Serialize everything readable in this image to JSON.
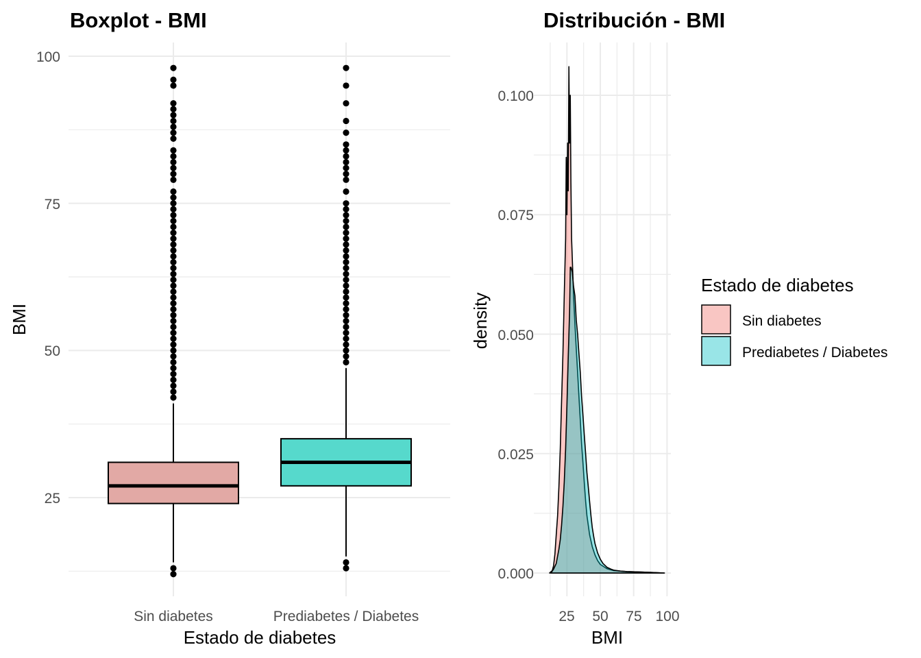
{
  "chart_data": [
    {
      "type": "boxplot",
      "title": "Boxplot - BMI",
      "xlabel": "Estado de diabetes",
      "ylabel": "BMI",
      "ylim": [
        10,
        103
      ],
      "yticks": [
        25,
        50,
        75,
        100
      ],
      "yticklabels": [
        "25",
        "50",
        "75",
        "100"
      ],
      "categories": [
        "Sin diabetes",
        "Prediabetes / Diabetes"
      ],
      "grid": true,
      "boxes": [
        {
          "name": "Sin diabetes",
          "color": "#E2A9A5",
          "whisker_low": 14,
          "q1": 24,
          "median": 27,
          "q3": 31,
          "whisker_high": 41,
          "outliers": [
            12,
            13,
            42,
            43,
            44,
            45,
            46,
            47,
            48,
            49,
            50,
            51,
            52,
            53,
            54,
            55,
            56,
            57,
            58,
            59,
            60,
            61,
            62,
            63,
            64,
            65,
            66,
            67,
            68,
            69,
            70,
            71,
            72,
            73,
            74,
            75,
            76,
            77,
            79,
            80,
            81,
            82,
            83,
            84,
            86,
            87,
            88,
            89,
            90,
            91,
            92,
            95,
            96,
            98
          ]
        },
        {
          "name": "Prediabetes / Diabetes",
          "color": "#56D9CC",
          "whisker_low": 15,
          "q1": 27,
          "median": 31,
          "q3": 35,
          "whisker_high": 47,
          "outliers": [
            13,
            14,
            48,
            49,
            50,
            51,
            52,
            53,
            54,
            55,
            56,
            57,
            58,
            59,
            60,
            61,
            62,
            63,
            64,
            65,
            66,
            67,
            68,
            69,
            70,
            71,
            72,
            73,
            74,
            75,
            77,
            79,
            80,
            81,
            82,
            83,
            84,
            85,
            87,
            89,
            92,
            95,
            98
          ]
        }
      ]
    },
    {
      "type": "area",
      "title": "Distribución - BMI",
      "xlabel": "BMI",
      "ylabel": "density",
      "xlim": [
        7,
        103
      ],
      "ylim": [
        -0.002,
        0.111
      ],
      "xticks": [
        25,
        50,
        75,
        100
      ],
      "xticklabels": [
        "25",
        "50",
        "75",
        "100"
      ],
      "yticks": [
        0.0,
        0.025,
        0.05,
        0.075,
        0.1
      ],
      "yticklabels": [
        "0.000",
        "0.025",
        "0.050",
        "0.075",
        "0.100"
      ],
      "grid": true,
      "legend": {
        "title": "Estado de diabetes",
        "position": "right",
        "entries": [
          "Sin diabetes",
          "Prediabetes / Diabetes"
        ]
      },
      "series": [
        {
          "name": "Sin diabetes",
          "color": "#F8766D",
          "x": [
            12,
            14,
            15,
            16,
            17,
            18,
            19,
            20,
            21,
            22,
            23,
            24,
            24.5,
            25,
            25.5,
            26,
            26.5,
            27,
            27.5,
            28,
            28.5,
            29,
            30,
            31,
            32,
            33,
            34,
            35,
            36,
            37,
            38,
            39,
            40,
            42,
            44,
            46,
            48,
            50,
            55,
            60,
            70,
            80,
            90,
            98
          ],
          "y": [
            0.0,
            0.0005,
            0.0015,
            0.004,
            0.008,
            0.012,
            0.018,
            0.026,
            0.036,
            0.046,
            0.058,
            0.07,
            0.087,
            0.075,
            0.09,
            0.08,
            0.106,
            0.09,
            0.1,
            0.082,
            0.07,
            0.066,
            0.058,
            0.052,
            0.047,
            0.042,
            0.037,
            0.032,
            0.027,
            0.023,
            0.019,
            0.015,
            0.012,
            0.008,
            0.0055,
            0.0038,
            0.0026,
            0.0018,
            0.0009,
            0.0005,
            0.0003,
            0.0002,
            0.0001,
            0.0
          ]
        },
        {
          "name": "Prediabetes / Diabetes",
          "color": "#00BFC4",
          "x": [
            13,
            15,
            17,
            19,
            20,
            21,
            22,
            23,
            24,
            25,
            26,
            27,
            27.5,
            28,
            29,
            30,
            31,
            32,
            33,
            34,
            35,
            36,
            37,
            38,
            39,
            40,
            41,
            42,
            43,
            44,
            45,
            46,
            48,
            50,
            52,
            55,
            58,
            60,
            65,
            70,
            80,
            90,
            98
          ],
          "y": [
            0.0,
            0.0008,
            0.002,
            0.005,
            0.007,
            0.01,
            0.014,
            0.019,
            0.026,
            0.035,
            0.045,
            0.055,
            0.064,
            0.064,
            0.063,
            0.06,
            0.058,
            0.053,
            0.05,
            0.046,
            0.042,
            0.037,
            0.033,
            0.029,
            0.025,
            0.021,
            0.018,
            0.015,
            0.012,
            0.0095,
            0.0077,
            0.0062,
            0.0042,
            0.0029,
            0.002,
            0.0012,
            0.0008,
            0.0006,
            0.0004,
            0.0003,
            0.0002,
            0.0001,
            0.0
          ]
        }
      ]
    }
  ],
  "legend_fill_colors": [
    "#F9C6C3",
    "#99E5E7"
  ]
}
